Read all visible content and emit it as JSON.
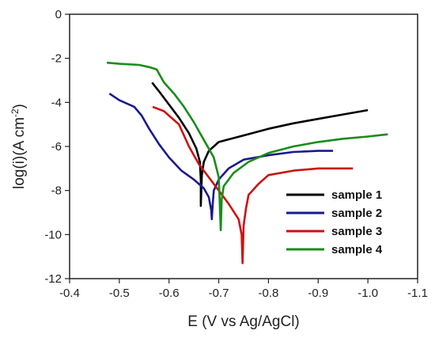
{
  "chart_data": {
    "type": "line",
    "xlabel": "E (V vs Ag/AgCl)",
    "ylabel_main": "log(i)(A cm",
    "ylabel_sup": "-2",
    "ylabel_tail": ")",
    "xlim": [
      -0.4,
      -1.1
    ],
    "ylim": [
      -12,
      0
    ],
    "x_ticks": [
      -0.4,
      -0.5,
      -0.6,
      -0.7,
      -0.8,
      -0.9,
      -1.0,
      -1.1
    ],
    "x_tick_labels": [
      "-0.4",
      "-0.5",
      "-0.6",
      "-0.7",
      "-0.8",
      "-0.9",
      "-1.0",
      "-1.1"
    ],
    "y_ticks": [
      0,
      -2,
      -4,
      -6,
      -8,
      -10,
      -12
    ],
    "y_tick_labels": [
      "0",
      "-2",
      "-4",
      "-6",
      "-8",
      "-10",
      "-12"
    ],
    "grid": false,
    "legend_position": "bottom-right",
    "series": [
      {
        "name": "sample 1",
        "color": "#000000",
        "x": [
          -0.566,
          -0.58,
          -0.6,
          -0.62,
          -0.64,
          -0.655,
          -0.662,
          -0.664,
          -0.664,
          -0.666,
          -0.67,
          -0.68,
          -0.7,
          -0.75,
          -0.8,
          -0.85,
          -0.9,
          -0.95,
          -1.0
        ],
        "y": [
          -3.1,
          -3.5,
          -4.1,
          -4.7,
          -5.4,
          -6.1,
          -6.7,
          -7.5,
          -8.7,
          -7.3,
          -6.7,
          -6.2,
          -5.8,
          -5.5,
          -5.2,
          -4.95,
          -4.75,
          -4.55,
          -4.35
        ]
      },
      {
        "name": "sample 2",
        "color": "#1a1a8c",
        "x": [
          -0.48,
          -0.5,
          -0.53,
          -0.545,
          -0.56,
          -0.58,
          -0.6,
          -0.625,
          -0.65,
          -0.67,
          -0.68,
          -0.685,
          -0.686,
          -0.688,
          -0.69,
          -0.7,
          -0.72,
          -0.75,
          -0.8,
          -0.85,
          -0.9,
          -0.93
        ],
        "y": [
          -3.6,
          -3.9,
          -4.2,
          -4.6,
          -5.2,
          -5.9,
          -6.5,
          -7.1,
          -7.5,
          -7.9,
          -8.3,
          -8.9,
          -9.3,
          -8.6,
          -8.0,
          -7.5,
          -7.0,
          -6.6,
          -6.4,
          -6.25,
          -6.2,
          -6.2
        ]
      },
      {
        "name": "sample 3",
        "color": "#cc1111",
        "x": [
          -0.567,
          -0.59,
          -0.62,
          -0.64,
          -0.66,
          -0.68,
          -0.7,
          -0.72,
          -0.74,
          -0.746,
          -0.748,
          -0.75,
          -0.755,
          -0.76,
          -0.78,
          -0.8,
          -0.85,
          -0.9,
          -0.95,
          -0.97
        ],
        "y": [
          -4.2,
          -4.4,
          -5.0,
          -6.0,
          -6.8,
          -7.4,
          -8.0,
          -8.6,
          -9.3,
          -10.0,
          -11.3,
          -9.6,
          -8.8,
          -8.2,
          -7.7,
          -7.3,
          -7.1,
          -7.0,
          -7.0,
          -7.0
        ]
      },
      {
        "name": "sample 4",
        "color": "#1a8c1a",
        "x": [
          -0.475,
          -0.5,
          -0.54,
          -0.56,
          -0.575,
          -0.59,
          -0.61,
          -0.63,
          -0.65,
          -0.67,
          -0.69,
          -0.7,
          -0.702,
          -0.704,
          -0.706,
          -0.71,
          -0.73,
          -0.76,
          -0.8,
          -0.85,
          -0.9,
          -0.95,
          -1.0,
          -1.04
        ],
        "y": [
          -2.2,
          -2.25,
          -2.3,
          -2.4,
          -2.5,
          -3.1,
          -3.6,
          -4.2,
          -4.9,
          -5.7,
          -6.5,
          -7.4,
          -8.5,
          -9.8,
          -8.4,
          -7.8,
          -7.2,
          -6.7,
          -6.3,
          -6.0,
          -5.8,
          -5.65,
          -5.55,
          -5.45
        ]
      }
    ]
  }
}
